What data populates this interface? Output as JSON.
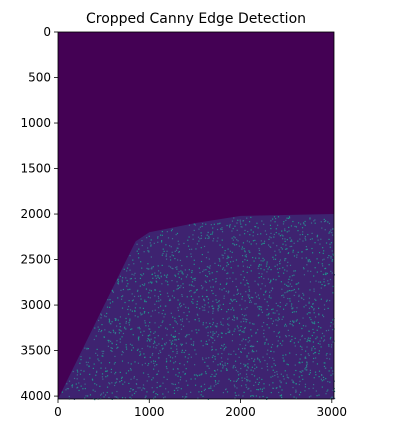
{
  "chart_data": {
    "type": "heatmap",
    "title": "Cropped Canny Edge Detection",
    "xlabel": "",
    "ylabel": "",
    "xlim": [
      0,
      3024
    ],
    "ylim": [
      4032,
      0
    ],
    "x_ticks": [
      "0",
      "1000",
      "2000",
      "3000"
    ],
    "x_tick_values": [
      0,
      1000,
      2000,
      3000
    ],
    "y_ticks": [
      "0",
      "500",
      "1000",
      "1500",
      "2000",
      "2500",
      "3000",
      "3500",
      "4000"
    ],
    "y_tick_values": [
      0,
      500,
      1000,
      1500,
      2000,
      2500,
      3000,
      3500,
      4000
    ],
    "grid": false,
    "colormap": "viridis",
    "colors": {
      "background": "#440154",
      "edge": "#21918c",
      "edge_bright": "#3b6f8f"
    },
    "edge_region": {
      "description_points_data_units": [
        [
          0,
          4032
        ],
        [
          850,
          2300
        ],
        [
          1000,
          2200
        ],
        [
          1500,
          2100
        ],
        [
          2000,
          2020
        ],
        [
          3024,
          2000
        ],
        [
          3024,
          4032
        ]
      ]
    }
  }
}
